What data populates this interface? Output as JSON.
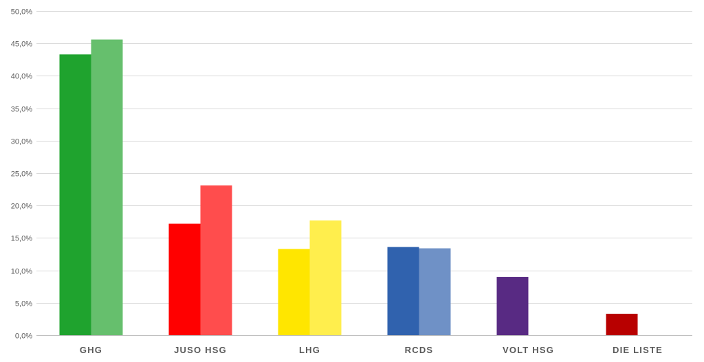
{
  "chart_data": {
    "type": "bar",
    "title": "",
    "xlabel": "",
    "ylabel": "",
    "ylim": [
      0,
      50
    ],
    "y_ticks": [
      "0,0%",
      "5,0%",
      "10,0%",
      "15,0%",
      "20,0%",
      "25,0%",
      "30,0%",
      "35,0%",
      "40,0%",
      "45,0%",
      "50,0%"
    ],
    "y_tick_values": [
      0,
      5,
      10,
      15,
      20,
      25,
      30,
      35,
      40,
      45,
      50
    ],
    "grid": true,
    "legend": "none",
    "categories": [
      "GHG",
      "JUSO HSG",
      "LHG",
      "RCDS",
      "VOLT HSG",
      "DIE LISTE"
    ],
    "series": [
      {
        "values": [
          43.3,
          17.2,
          13.3,
          13.6,
          9.0,
          3.3
        ],
        "colors": [
          "#1fa32e",
          "#ff0000",
          "#ffe600",
          "#3062ae",
          "#582a83",
          "#b80000"
        ]
      },
      {
        "values": [
          45.6,
          23.1,
          17.7,
          13.4,
          null,
          null
        ],
        "colors": [
          "#66bf6d",
          "#ff4d4d",
          "#ffee4d",
          "#6f91c6",
          null,
          null
        ]
      }
    ]
  }
}
